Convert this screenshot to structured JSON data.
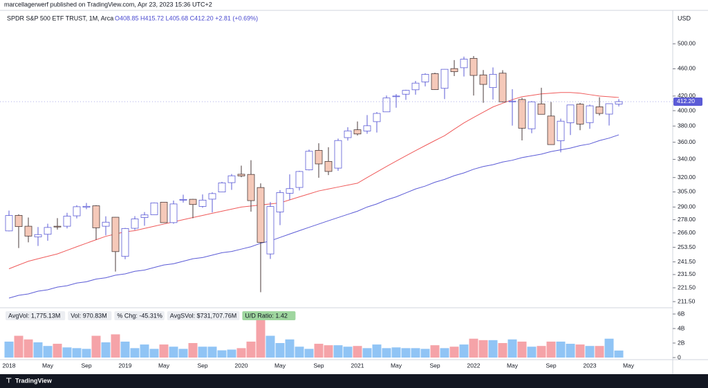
{
  "header": {
    "publisher": "marcellagerwerf published on TradingView.com, Apr 23, 2023 15:36 UTC+2"
  },
  "footer": {
    "brand": "TradingView"
  },
  "chart_data": {
    "type": "candlestick",
    "title": "SPDR S&P 500 ETF TRUST, 1M, Arca",
    "legend_values": "O408.85 H415.72 L405.68 C412.20 +2.81 (+0.69%)",
    "currency": "USD",
    "log_scale": true,
    "last_price": {
      "value": 412.2,
      "label": "412.20"
    },
    "up_color": "#ffffff",
    "up_border": "#5b5bd6",
    "down_color": "#f5c9b9",
    "down_border": "#4a3a3a",
    "categories": [
      "2018",
      null,
      null,
      null,
      "May",
      null,
      null,
      null,
      "Sep",
      null,
      null,
      null,
      "2019",
      null,
      null,
      null,
      "May",
      null,
      null,
      null,
      "Sep",
      null,
      null,
      null,
      "2020",
      null,
      null,
      null,
      "May",
      null,
      null,
      null,
      "Sep",
      null,
      null,
      null,
      "2021",
      null,
      null,
      null,
      "May",
      null,
      null,
      null,
      "Sep",
      null,
      null,
      null,
      "2022",
      null,
      null,
      null,
      "May",
      null,
      null,
      null,
      "Sep",
      null,
      null,
      null,
      "2023",
      null,
      null,
      null,
      "May"
    ],
    "open": [
      267.8,
      282,
      272,
      262.5,
      264.8,
      272,
      272,
      281.6,
      289.8,
      291.2,
      272,
      280.3,
      245.98,
      270.15,
      280,
      282.64,
      294.72,
      275.31,
      296.68,
      297.6,
      290.57,
      297.74,
      304.92,
      314.59,
      323.54,
      323.35,
      309.5,
      247.98,
      285.31,
      303.62,
      309.57,
      328.32,
      350.35,
      337.69,
      330.2,
      365.57,
      375.31,
      373.72,
      385.59,
      398.4,
      419.43,
      422.57,
      428.87,
      440.34,
      452.56,
      430.98,
      460.3,
      461.64,
      476.3,
      450.68,
      432.03,
      453.31,
      412.07,
      415.17,
      376.56,
      409.15,
      392.89,
      361.8,
      384.23,
      408.77,
      384.37,
      405.21,
      395.41,
      408.85,
      null
    ],
    "high": [
      286.6,
      283,
      280,
      271.3,
      274.3,
      279.5,
      284.4,
      291.7,
      293.9,
      291.7,
      281.2,
      280.4,
      270.47,
      281.31,
      285.2,
      294.45,
      294.95,
      296.31,
      302.23,
      297.92,
      302.46,
      304.55,
      315.48,
      323.8,
      332.95,
      339.08,
      313.84,
      294.88,
      306.84,
      323.41,
      327.23,
      351.3,
      358.75,
      354.02,
      364.38,
      378.46,
      385.85,
      394.17,
      398.12,
      420.72,
      422.82,
      428.78,
      441.8,
      453.07,
      454.05,
      459.56,
      473.54,
      479,
      479.98,
      458.12,
      462.07,
      457.83,
      429.66,
      417.44,
      413.03,
      431.73,
      411.73,
      389.52,
      407.68,
      410.49,
      408.16,
      418.31,
      409.7,
      415.72,
      null
    ],
    "low": [
      267.4,
      252.9,
      257.8,
      254.7,
      259.1,
      269,
      270,
      279.2,
      287.9,
      259.9,
      263.9,
      233.8,
      243.67,
      268.59,
      272.42,
      282.59,
      275.88,
      274.24,
      294.33,
      279.4,
      289.27,
      284.82,
      304.74,
      307.13,
      320.36,
      285.54,
      218.26,
      243.9,
      272.99,
      296.74,
      306.51,
      327.73,
      319.8,
      322.6,
      327.24,
      362.03,
      368.27,
      370.38,
      371.88,
      398.18,
      404,
      414.7,
      421.97,
      433.74,
      428.78,
      415.8,
      448.92,
      448.27,
      420.76,
      410.64,
      415.12,
      411.21,
      380.54,
      362.17,
      371.04,
      395.04,
      357.04,
      348.11,
      368.79,
      374.77,
      376.5,
      393.64,
      380.65,
      405.68,
      null
    ],
    "close": [
      281.9,
      271.7,
      263.2,
      264.5,
      270.9,
      271.3,
      281.3,
      290.3,
      290.7,
      270.6,
      275.7,
      249.9,
      269.93,
      278.68,
      282.48,
      294.02,
      275.27,
      293,
      297.43,
      292.45,
      296.77,
      303.33,
      314.31,
      321.86,
      321.73,
      296.26,
      257.75,
      290.48,
      304.32,
      308.36,
      326.52,
      349.31,
      334.89,
      326.54,
      362.06,
      373.88,
      370.07,
      380.36,
      396.33,
      417.3,
      420.04,
      428.06,
      438.51,
      451.56,
      429.14,
      459.25,
      455.56,
      474.96,
      449.91,
      436.63,
      451.64,
      412,
      412.93,
      377.25,
      411.99,
      395.18,
      357.18,
      386.21,
      407.68,
      382.43,
      406.48,
      396.26,
      409.39,
      412.2,
      null
    ],
    "series": [
      {
        "color": "#ef5a5a",
        "values": [
          236,
          239,
          242,
          244,
          246,
          248,
          251,
          254,
          257,
          260,
          263,
          265,
          267,
          268,
          270,
          272,
          274,
          276,
          278,
          280,
          282,
          284,
          286,
          288,
          290,
          291,
          292,
          293,
          294,
          297,
          300,
          303,
          306,
          308,
          310,
          312,
          314,
          320,
          326,
          332,
          338,
          344,
          350,
          356,
          362,
          368,
          376,
          384,
          391,
          398,
          405,
          410,
          415,
          419,
          421,
          423,
          424,
          425,
          425,
          424,
          422,
          420,
          419,
          418,
          null
        ]
      },
      {
        "color": "#5b5bd6",
        "values": [
          214,
          216,
          217,
          219,
          220,
          222,
          223,
          225,
          226,
          228,
          229,
          231,
          232,
          234,
          235,
          237,
          239,
          240,
          242,
          244,
          245,
          247,
          249,
          250,
          252,
          254,
          257,
          259,
          262,
          265,
          268,
          271,
          274,
          277,
          280,
          283,
          286,
          290,
          293,
          297,
          300,
          304,
          308,
          311,
          315,
          318,
          322,
          325,
          329,
          332,
          334,
          337,
          339,
          342,
          344,
          346,
          349,
          351,
          353,
          356,
          358,
          362,
          365,
          369,
          null
        ]
      }
    ],
    "ylim": [
      207.2,
      559
    ],
    "yticks": [
      {
        "value": 500,
        "label": "500.00"
      },
      {
        "value": 460,
        "label": "460.00"
      },
      {
        "value": 420,
        "label": "420.00"
      },
      {
        "value": 400,
        "label": "400.00"
      },
      {
        "value": 380,
        "label": "380.00"
      },
      {
        "value": 360,
        "label": "360.00"
      },
      {
        "value": 340,
        "label": "340.00"
      },
      {
        "value": 320,
        "label": "320.00"
      },
      {
        "value": 305,
        "label": "305.00"
      },
      {
        "value": 290,
        "label": "290.00"
      },
      {
        "value": 278,
        "label": "278.00"
      },
      {
        "value": 266,
        "label": "266.00"
      },
      {
        "value": 253.5,
        "label": "253.50"
      },
      {
        "value": 241.5,
        "label": "241.50"
      },
      {
        "value": 231.5,
        "label": "231.50"
      },
      {
        "value": 221.5,
        "label": "221.50"
      },
      {
        "value": 211.5,
        "label": "211.50"
      }
    ],
    "volume": {
      "stats": [
        "AvgVol: 1,775.13M",
        "Vol: 970.83M",
        "% Chg: -45.31%",
        "AvgSVol: $731,707.76M",
        "U/D Ratio: 1.42"
      ],
      "up_color": "#90c4f5",
      "down_color": "#f5a3a8",
      "values": [
        2200000000,
        3000000000,
        2500000000,
        2100000000,
        1600000000,
        1900000000,
        1400000000,
        1300000000,
        1200000000,
        3000000000,
        2100000000,
        3200000000,
        2200000000,
        1300000000,
        1800000000,
        1200000000,
        1800000000,
        1500000000,
        1200000000,
        2000000000,
        1500000000,
        1500000000,
        1000000000,
        1100000000,
        1300000000,
        2200000000,
        5300000000,
        3000000000,
        2000000000,
        2500000000,
        1500000000,
        1200000000,
        1900000000,
        1700000000,
        1700000000,
        1500000000,
        1600000000,
        1300000000,
        1800000000,
        1300000000,
        1400000000,
        1300000000,
        1300000000,
        1200000000,
        1700000000,
        1300000000,
        1500000000,
        1800000000,
        2600000000,
        2400000000,
        2400000000,
        2000000000,
        2500000000,
        2200000000,
        1500000000,
        1600000000,
        2200000000,
        2200000000,
        1900000000,
        1800000000,
        1600000000,
        1600000000,
        2600000000,
        970830000,
        null
      ],
      "ylim": [
        0,
        6860000000
      ],
      "yticks": [
        0,
        {
          "value": 2000000000,
          "label": "2B"
        },
        {
          "value": 4000000000,
          "label": "4B"
        },
        {
          "value": 6000000000,
          "label": "6B"
        }
      ]
    }
  }
}
